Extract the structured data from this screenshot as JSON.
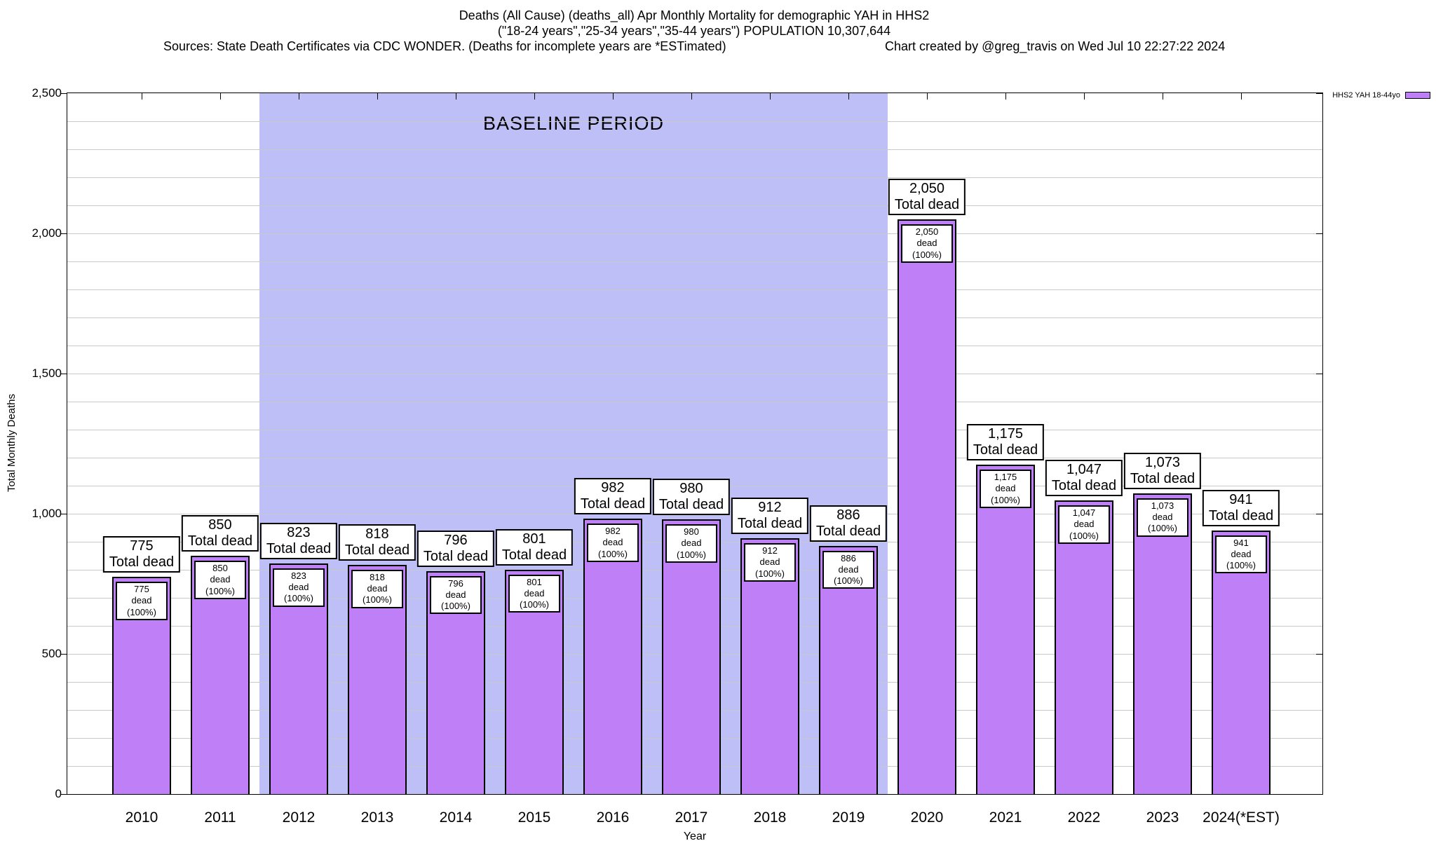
{
  "header": {
    "title_line1": "Deaths (All Cause) (deaths_all) Apr Monthly Mortality for demographic YAH in HHS2",
    "title_line2": "(\"18-24 years\",\"25-34 years\",\"35-44 years\") POPULATION 10,307,644",
    "sources": "Sources: State Death Certificates via CDC WONDER. (Deaths for incomplete years are *ESTimated)",
    "credit": "Chart created by @greg_travis on Wed Jul 10 22:27:22 2024"
  },
  "legend": {
    "label": "HHS2 YAH 18-44yo",
    "swatch_color": "#bf80f7"
  },
  "chart_data": {
    "type": "bar",
    "title": "Deaths (All Cause) (deaths_all) Apr Monthly Mortality for demographic YAH in HHS2",
    "subtitle": "(\"18-24 years\",\"25-34 years\",\"35-44 years\") POPULATION 10,307,644",
    "xlabel": "Year",
    "ylabel": "Total Monthly Deaths",
    "ylim": [
      0,
      2500
    ],
    "y_tick_interval": 500,
    "y_minor_grid_interval": 100,
    "y_tick_labels": [
      "0",
      "500",
      "1,000",
      "1,500",
      "2,000",
      "2,500"
    ],
    "grid": true,
    "legend_position": "top-right",
    "categories": [
      "2010",
      "2011",
      "2012",
      "2013",
      "2014",
      "2015",
      "2016",
      "2017",
      "2018",
      "2019",
      "2020",
      "2021",
      "2022",
      "2023",
      "2024(*EST)"
    ],
    "values": [
      775,
      850,
      823,
      818,
      796,
      801,
      982,
      980,
      912,
      886,
      2050,
      1175,
      1047,
      1073,
      941
    ],
    "series_name": "HHS2 YAH 18-44yo",
    "outer_label_suffix": "Total dead",
    "inner_label_suffix": "dead (100%)",
    "annotations": {
      "baseline": {
        "label": "BASELINE PERIOD",
        "start_category": "2012",
        "end_category": "2019"
      }
    },
    "colors": {
      "bar": "#bf80f7",
      "baseline_region": "#bfbff8",
      "grid": "#c8c8c8",
      "axis": "#000000",
      "background": "#ffffff"
    }
  }
}
